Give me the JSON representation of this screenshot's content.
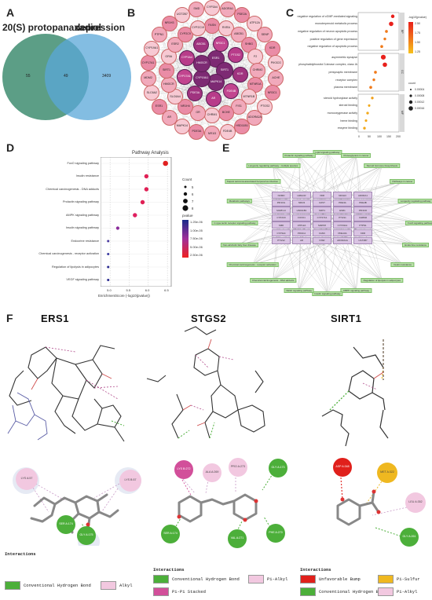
{
  "panels": {
    "A": "A",
    "B": "B",
    "C": "C",
    "D": "D",
    "E": "E",
    "F": "F"
  },
  "venn": {
    "left_label": "20(S) protopanaxadiol",
    "right_label": "depression",
    "left_only": "55",
    "overlap": "49",
    "right_only": "3409",
    "left_color": "#3f8d71",
    "right_color": "#5aa7d8"
  },
  "network": {
    "nodes_outer": [
      "CYP3A4",
      "ADORA1",
      "PDE2A",
      "ATP12A",
      "SENP",
      "KDR",
      "PIK3CG",
      "ACHE",
      "NR3C1",
      "PTGS2",
      "ADORA2A",
      "HSD11B1",
      "FDE4B",
      "NR1I3",
      "PDE3A",
      "MAPK14",
      "AR",
      "ESR1",
      "SLC6A2",
      "MDM2",
      "CYP17A1",
      "CYP19A1",
      "PTPN1",
      "NR1H3",
      "UGT2B7",
      "SMD",
      "FASN",
      "RXRA",
      "ABCB1",
      "SHBG",
      "F2",
      "CHRM2",
      "MTNR1A",
      "MTNR1B",
      "FIS1",
      "BCHE",
      "CHRM1",
      "GR",
      "NR1H4",
      "SLC6A4",
      "HMGCR",
      "SIRT1",
      "GRIA",
      "ESR2",
      "CYP2C9",
      "CYP2C19"
    ],
    "nodes_inner": [
      "ESR1",
      "SIRT1",
      "MAPK14",
      "CYP19A1",
      "HMGCR",
      "NR3C1",
      "PTGS2",
      "KDR",
      "FDE4B",
      "AR",
      "PDE3A",
      "CYP17A1",
      "CYP3A4",
      "ABCB1"
    ]
  },
  "go": {
    "legend_title": "-log10(pvalue)",
    "legend_ticks": [
      "2.50",
      "1.75",
      "1.50",
      "1.25"
    ],
    "count_title": "count",
    "count_ticks": [
      "0.00004",
      "0.00008",
      "0.00012",
      "0.00016"
    ],
    "sections": [
      "BP",
      "CC",
      "MF"
    ],
    "rows": [
      "negative regulation of cGMP-mediated signaling",
      "monoterpenoid metabolic process",
      "negative regulation of neuron apoptotic process",
      "positive regulation of gene expression",
      "negative regulation of apoptotic process",
      "asymmetric synapse",
      "phosphatidylinositol 3-kinase complex, class IA",
      "presynaptic membrane",
      "receptor complex",
      "plasma membrane",
      "steroid hydroxylase activity",
      "steroid binding",
      "monooxygenase activity",
      "heme binding",
      "enzyme binding"
    ],
    "x_ticks": [
      "0",
      "50",
      "100",
      "150",
      "200"
    ]
  },
  "kegg": {
    "title": "Pathway Analysis",
    "pathways": [
      "FoxO signaling pathway",
      "Insulin resistance",
      "Chemical carcinogenesis - DNA adducts",
      "Prolactin signaling pathway",
      "AMPK signaling pathway",
      "Insulin signaling pathway",
      "Endocrine resistance",
      "Chemical carcinogenesis - receptor activation",
      "Regulation of lipolysis in adipocytes",
      "VEGF signaling pathway"
    ],
    "x_label": "EnrichmentScore (-log10(pvalue))",
    "x_ticks": [
      "5.0",
      "5.5",
      "6.0",
      "6.5"
    ],
    "count_title": "Count",
    "count_ticks": [
      "5",
      "6",
      "7",
      "8"
    ],
    "pvalue_title": "pvalue",
    "pvalue_ticks": [
      "1.25e-06",
      "1.00e-05",
      "7.50e-06",
      "5.00e-06",
      "2.50e-06"
    ]
  },
  "compound_target_pathway": {
    "targets": [
      "NOMD",
      "HMGCR",
      "VDR",
      "NR1H3",
      "ADORA1",
      "PIK3CG",
      "NR1I3",
      "IL6ST",
      "PDE3A",
      "PDE4B",
      "MAPK14",
      "HSD11B1",
      "SIRT1",
      "ESR1",
      "PIK3CD",
      "CYP2C9",
      "FOXO1",
      "CYP17A1",
      "PTGS1",
      "CHRM2",
      "SMD",
      "ATP12A",
      "MAPK8",
      "CYP19A1",
      "PTPN1",
      "CYP3A4",
      "PIK3CA",
      "FASN",
      "PDE10A",
      "KDR",
      "PTGS2",
      "AR",
      "INSR",
      "ADORA2A",
      "UGT2B7"
    ],
    "pathways": [
      "Lipid signaling pathway",
      "Proteoglycans in cancer",
      "Steroid hormone biosynthesis",
      "Pathways in cancer",
      "Longevity regulating pathway",
      "FoxO signaling pathway",
      "Endocrine resistance",
      "Insulin resistance",
      "Regulation of lipolysis in adipocytes",
      "AMPK signaling pathway",
      "Insulin signaling pathway",
      "VEGF signaling pathway",
      "Chemical carcinogenesis - DNA adducts",
      "Chemical carcinogenesis - receptor activation",
      "Non-alcoholic fatty liver disease",
      "C-type lectin receptor signaling pathway",
      "Metabolic pathways",
      "Kaposi sarcoma-associated herpesvirus infection",
      "Longevity regulating pathway - multiple species",
      "Prolactin signaling pathway"
    ]
  },
  "docking": {
    "titles": [
      "ERS1",
      "STGS2",
      "SIRT1"
    ],
    "ers1_residues": [
      "LYS A:57",
      "LYS B:57",
      "SER A:174",
      "GLY A:175"
    ],
    "stgs2_residues": [
      "LYS B:272",
      "ALA A:269",
      "PRO A:273",
      "GLY A:173",
      "SER A:174",
      "VAL A:271",
      "PHE A:270"
    ],
    "sirt1_residues": [
      "ASP A:348",
      "MET A:322",
      "LEU A:352",
      "GLY A:261"
    ],
    "legend": {
      "heading": "Interactions",
      "ers1": [
        {
          "label": "Conventional Hydrogen Bond",
          "color": "#4caf3a"
        },
        {
          "label": "Alkyl",
          "color": "#f2c8e0"
        }
      ],
      "stgs2": [
        {
          "label": "Conventional Hydrogen Bond",
          "color": "#4caf3a"
        },
        {
          "label": "Pi-Pi Stacked",
          "color": "#d24f9a"
        },
        {
          "label": "Pi-Alkyl",
          "color": "#f2c8e0"
        }
      ],
      "sirt1": [
        {
          "label": "Unfavorable Bump",
          "color": "#e0201b"
        },
        {
          "label": "Pi-Sulfur",
          "color": "#efb820"
        },
        {
          "label": "Conventional Hydrogen Bond",
          "color": "#4caf3a"
        },
        {
          "label": "Pi-Alkyl",
          "color": "#f2c8e0"
        }
      ]
    }
  }
}
